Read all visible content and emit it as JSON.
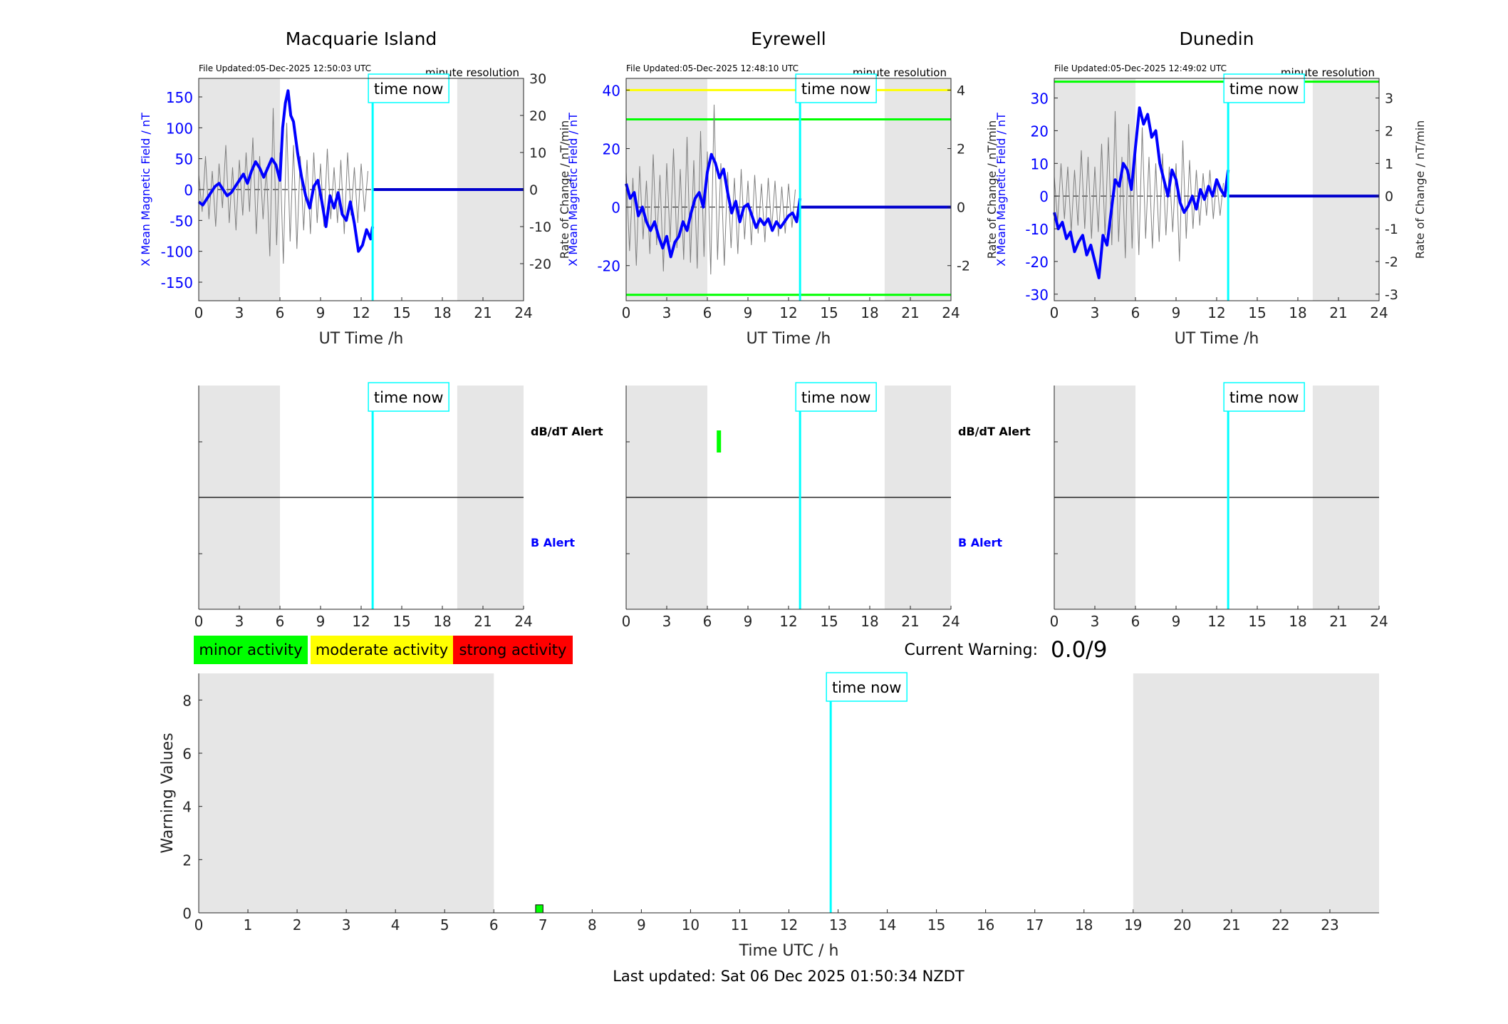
{
  "colors": {
    "x_field": "#0000ff",
    "rate": "#808080",
    "now_line": "#00ffff",
    "night": "#e6e6e6",
    "minor": "#00ff00",
    "moderate": "#ffff00",
    "strong": "#ff0000"
  },
  "labels": {
    "file_updated_prefix": "File Updated:",
    "resolution": "minute resolution",
    "time_now": "time now",
    "ut_xlabel": "UT Time /h",
    "left_ylabel": "X Mean Magnetic Field / nT",
    "right_ylabel": "Rate of Change / nT/min",
    "dbdt_alert": "dB/dT Alert",
    "b_alert": "B Alert",
    "current_warning_label": "Current Warning:",
    "current_warning_value": "0.0/9",
    "warning_ylabel": "Warning Values",
    "warning_xlabel": "Time UTC / h",
    "last_updated": "Last updated: Sat 06 Dec 2025 01:50:34 NZDT"
  },
  "legend": {
    "minor": "minor activity",
    "moderate": "moderate activity",
    "strong": "strong activity"
  },
  "chart_data": [
    {
      "type": "line",
      "station": "Macquarie Island",
      "file_updated": "05-Dec-2025 12:50:03 UTC",
      "xlim": [
        0,
        24
      ],
      "xticks": [
        0,
        3,
        6,
        9,
        12,
        15,
        18,
        21,
        24
      ],
      "ylim": [
        -180,
        180
      ],
      "yticks": [
        -150,
        -100,
        -50,
        0,
        50,
        100,
        150
      ],
      "y2lim": [
        -30,
        30
      ],
      "y2ticks": [
        -20,
        -10,
        0,
        10,
        20,
        30
      ],
      "time_now": 12.85,
      "night": [
        [
          0,
          6
        ],
        [
          19.1,
          24
        ]
      ],
      "thresholds": [],
      "x_field": {
        "x": [
          0,
          0.3,
          0.6,
          0.9,
          1.2,
          1.5,
          1.8,
          2.1,
          2.4,
          2.7,
          3.0,
          3.3,
          3.6,
          3.9,
          4.2,
          4.5,
          4.8,
          5.1,
          5.4,
          5.7,
          6.0,
          6.2,
          6.4,
          6.6,
          6.8,
          7.0,
          7.3,
          7.6,
          7.9,
          8.2,
          8.5,
          8.8,
          9.1,
          9.4,
          9.7,
          10.0,
          10.3,
          10.6,
          10.9,
          11.2,
          11.5,
          11.8,
          12.1,
          12.4,
          12.7,
          12.85
        ],
        "values": [
          -20,
          -25,
          -15,
          -5,
          5,
          10,
          0,
          -10,
          -5,
          5,
          15,
          25,
          10,
          30,
          45,
          35,
          20,
          35,
          50,
          40,
          15,
          100,
          140,
          160,
          120,
          110,
          60,
          20,
          -10,
          -30,
          5,
          15,
          -20,
          -60,
          -10,
          -30,
          -5,
          -40,
          -50,
          -20,
          -55,
          -100,
          -90,
          -65,
          -80,
          -60
        ]
      },
      "rate_of_change": {
        "x": [
          0,
          0.25,
          0.5,
          0.75,
          1.0,
          1.25,
          1.5,
          1.75,
          2.0,
          2.25,
          2.5,
          2.75,
          3.0,
          3.25,
          3.5,
          3.75,
          4.0,
          4.25,
          4.5,
          4.75,
          5.0,
          5.25,
          5.5,
          5.75,
          6.0,
          6.25,
          6.5,
          6.75,
          7.0,
          7.25,
          7.5,
          7.75,
          8.0,
          8.25,
          8.5,
          8.75,
          9.0,
          9.25,
          9.5,
          9.75,
          10.0,
          10.25,
          10.5,
          10.75,
          11.0,
          11.25,
          11.5,
          11.75,
          12.0,
          12.25,
          12.5
        ],
        "values": [
          4,
          -6,
          9,
          -8,
          5,
          -10,
          7,
          -5,
          12,
          -9,
          6,
          -11,
          8,
          -7,
          10,
          -6,
          14,
          -12,
          9,
          -8,
          6,
          -18,
          22,
          -15,
          10,
          -20,
          18,
          -14,
          12,
          -16,
          9,
          -11,
          8,
          -12,
          10,
          -9,
          7,
          -10,
          11,
          -8,
          6,
          -9,
          8,
          -12,
          10,
          -7,
          6,
          -9,
          7,
          -6,
          5
        ]
      }
    },
    {
      "type": "line",
      "station": "Eyrewell",
      "file_updated": "05-Dec-2025 12:48:10 UTC",
      "xlim": [
        0,
        24
      ],
      "xticks": [
        0,
        3,
        6,
        9,
        12,
        15,
        18,
        21,
        24
      ],
      "ylim": [
        -32,
        44
      ],
      "yticks": [
        -20,
        0,
        20,
        40
      ],
      "y2lim": [
        -3.2,
        4.4
      ],
      "y2ticks": [
        -2,
        0,
        2,
        4
      ],
      "time_now": 12.85,
      "night": [
        [
          0,
          6
        ],
        [
          19.1,
          24
        ]
      ],
      "thresholds": [
        {
          "level": "moderate",
          "value": 40
        },
        {
          "level": "minor",
          "value": 30
        },
        {
          "level": "minor",
          "value": -30
        }
      ],
      "x_field": {
        "x": [
          0,
          0.3,
          0.6,
          0.9,
          1.2,
          1.5,
          1.8,
          2.1,
          2.4,
          2.7,
          3.0,
          3.3,
          3.6,
          3.9,
          4.2,
          4.5,
          4.8,
          5.1,
          5.4,
          5.7,
          6.0,
          6.3,
          6.6,
          6.9,
          7.2,
          7.5,
          7.8,
          8.1,
          8.4,
          8.7,
          9.0,
          9.3,
          9.6,
          9.9,
          10.2,
          10.5,
          10.8,
          11.1,
          11.4,
          11.7,
          12.0,
          12.3,
          12.6,
          12.85
        ],
        "values": [
          8,
          3,
          5,
          -3,
          0,
          -5,
          -8,
          -5,
          -10,
          -14,
          -10,
          -17,
          -12,
          -10,
          -5,
          -8,
          -2,
          3,
          5,
          0,
          12,
          18,
          15,
          10,
          13,
          5,
          -2,
          2,
          -5,
          0,
          1,
          -3,
          -7,
          -4,
          -6,
          -4,
          -8,
          -5,
          -7,
          -5,
          -3,
          -2,
          -5,
          3
        ]
      },
      "rate_of_change": {
        "x": [
          0,
          0.25,
          0.5,
          0.75,
          1.0,
          1.25,
          1.5,
          1.75,
          2.0,
          2.25,
          2.5,
          2.75,
          3.0,
          3.25,
          3.5,
          3.75,
          4.0,
          4.25,
          4.5,
          4.75,
          5.0,
          5.25,
          5.5,
          5.75,
          6.0,
          6.25,
          6.5,
          6.75,
          7.0,
          7.25,
          7.5,
          7.75,
          8.0,
          8.25,
          8.5,
          8.75,
          9.0,
          9.25,
          9.5,
          9.75,
          10.0,
          10.25,
          10.5,
          10.75,
          11.0,
          11.25,
          11.5,
          11.75,
          12.0,
          12.25,
          12.5
        ],
        "values": [
          1.2,
          -1.5,
          1.0,
          -2.0,
          1.4,
          -1.1,
          0.9,
          -1.6,
          1.8,
          -1.3,
          1.1,
          -2.2,
          1.5,
          -1.2,
          2.0,
          -1.4,
          1.3,
          -1.8,
          2.4,
          -1.9,
          1.6,
          -2.1,
          2.6,
          -1.7,
          1.9,
          -2.3,
          3.5,
          -1.8,
          1.5,
          -2.0,
          1.2,
          -1.4,
          1.0,
          -1.6,
          1.3,
          -1.1,
          0.9,
          -1.3,
          1.1,
          -0.9,
          0.8,
          -1.2,
          1.0,
          -0.8,
          0.9,
          -1.0,
          0.7,
          -0.9,
          0.8,
          -0.7,
          0.6
        ]
      }
    },
    {
      "type": "line",
      "station": "Dunedin",
      "file_updated": "05-Dec-2025 12:49:02 UTC",
      "xlim": [
        0,
        24
      ],
      "xticks": [
        0,
        3,
        6,
        9,
        12,
        15,
        18,
        21,
        24
      ],
      "ylim": [
        -32,
        36
      ],
      "yticks": [
        -30,
        -20,
        -10,
        0,
        10,
        20,
        30
      ],
      "y2lim": [
        -3.2,
        3.6
      ],
      "y2ticks": [
        -3,
        -2,
        -1,
        0,
        1,
        2,
        3
      ],
      "time_now": 12.85,
      "night": [
        [
          0,
          6
        ],
        [
          19.1,
          24
        ]
      ],
      "thresholds": [
        {
          "level": "minor",
          "value": 35
        }
      ],
      "x_field": {
        "x": [
          0,
          0.3,
          0.6,
          0.9,
          1.2,
          1.5,
          1.8,
          2.1,
          2.4,
          2.7,
          3.0,
          3.3,
          3.6,
          3.9,
          4.2,
          4.5,
          4.8,
          5.1,
          5.4,
          5.7,
          6.0,
          6.3,
          6.6,
          6.9,
          7.2,
          7.5,
          7.8,
          8.1,
          8.4,
          8.7,
          9.0,
          9.3,
          9.6,
          9.9,
          10.2,
          10.5,
          10.8,
          11.1,
          11.4,
          11.7,
          12.0,
          12.3,
          12.6,
          12.85
        ],
        "values": [
          -5,
          -10,
          -8,
          -13,
          -11,
          -17,
          -14,
          -12,
          -18,
          -15,
          -20,
          -25,
          -12,
          -15,
          -5,
          5,
          3,
          10,
          8,
          2,
          15,
          27,
          22,
          25,
          18,
          20,
          10,
          5,
          0,
          8,
          5,
          -2,
          -5,
          -3,
          0,
          -4,
          2,
          -1,
          3,
          0,
          5,
          2,
          0,
          8
        ]
      },
      "rate_of_change": {
        "x": [
          0,
          0.25,
          0.5,
          0.75,
          1.0,
          1.25,
          1.5,
          1.75,
          2.0,
          2.25,
          2.5,
          2.75,
          3.0,
          3.25,
          3.5,
          3.75,
          4.0,
          4.25,
          4.5,
          4.75,
          5.0,
          5.25,
          5.5,
          5.75,
          6.0,
          6.25,
          6.5,
          6.75,
          7.0,
          7.25,
          7.5,
          7.75,
          8.0,
          8.25,
          8.5,
          8.75,
          9.0,
          9.25,
          9.5,
          9.75,
          10.0,
          10.25,
          10.5,
          10.75,
          11.0,
          11.25,
          11.5,
          11.75,
          12.0,
          12.25,
          12.5
        ],
        "values": [
          0.6,
          -0.8,
          1.0,
          -0.7,
          0.9,
          -1.1,
          0.8,
          -0.9,
          1.4,
          -1.0,
          1.2,
          -1.3,
          0.9,
          -1.1,
          1.6,
          -1.2,
          1.8,
          -1.5,
          2.6,
          -1.4,
          1.2,
          -1.9,
          2.2,
          -1.6,
          1.5,
          -1.8,
          2.1,
          -1.3,
          1.2,
          -1.6,
          1.0,
          -1.4,
          1.3,
          -1.2,
          0.9,
          -1.1,
          1.0,
          -2.0,
          1.7,
          -1.3,
          1.1,
          -1.0,
          0.8,
          -0.9,
          0.7,
          -0.6,
          0.8,
          -0.7,
          0.5,
          -0.6,
          0.4
        ]
      }
    },
    {
      "type": "alert",
      "station": "Macquarie Island",
      "xlim": [
        0,
        24
      ],
      "xticks": [
        0,
        3,
        6,
        9,
        12,
        15,
        18,
        21,
        24
      ],
      "time_now": 12.85,
      "night": [
        [
          0,
          6
        ],
        [
          19.1,
          24
        ]
      ],
      "dbdt_alerts": [],
      "b_alerts": []
    },
    {
      "type": "alert",
      "station": "Eyrewell",
      "xlim": [
        0,
        24
      ],
      "xticks": [
        0,
        3,
        6,
        9,
        12,
        15,
        18,
        21,
        24
      ],
      "time_now": 12.85,
      "night": [
        [
          0,
          6
        ],
        [
          19.1,
          24
        ]
      ],
      "dbdt_alerts": [
        {
          "start": 6.8,
          "end": 6.9,
          "level": "minor"
        }
      ],
      "b_alerts": []
    },
    {
      "type": "alert",
      "station": "Dunedin",
      "xlim": [
        0,
        24
      ],
      "xticks": [
        0,
        3,
        6,
        9,
        12,
        15,
        18,
        21,
        24
      ],
      "time_now": 12.85,
      "night": [
        [
          0,
          6
        ],
        [
          19.1,
          24
        ]
      ],
      "dbdt_alerts": [],
      "b_alerts": []
    },
    {
      "type": "bar",
      "xlim": [
        0,
        24
      ],
      "xticks": [
        0,
        1,
        2,
        3,
        4,
        5,
        6,
        7,
        8,
        9,
        10,
        11,
        12,
        13,
        14,
        15,
        16,
        17,
        18,
        19,
        20,
        21,
        22,
        23
      ],
      "ylim": [
        0,
        9
      ],
      "yticks": [
        0,
        2,
        4,
        6,
        8
      ],
      "time_now": 12.85,
      "night": [
        [
          0,
          6
        ],
        [
          19,
          24
        ]
      ],
      "bars": [
        {
          "start": 6.85,
          "end": 7.0,
          "value": 0.3,
          "level": "minor"
        }
      ]
    }
  ]
}
